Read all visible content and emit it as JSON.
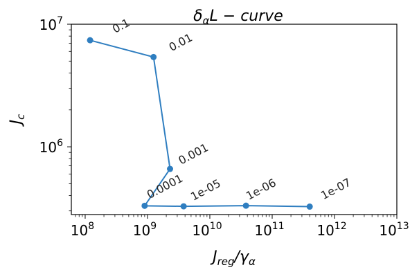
{
  "chart_data": {
    "type": "line",
    "title": "δαL − curve",
    "title_parts": {
      "main": "δ",
      "sub": "α",
      "rest": "L − curve"
    },
    "xlabel": "Jreg/γα",
    "xlabel_parts": {
      "j": "J",
      "jsub": "reg",
      "slash": "/γ",
      "gsub": "α"
    },
    "ylabel": "Jc",
    "ylabel_parts": {
      "j": "J",
      "jsub": "c"
    },
    "x_scale": "log",
    "y_scale": "log",
    "xlim": [
      60000000,
      10000000000000
    ],
    "ylim": [
      280000,
      10000000
    ],
    "x_ticks": [
      {
        "value": 100000000,
        "base": "10",
        "exp": "8"
      },
      {
        "value": 1000000000,
        "base": "10",
        "exp": "9"
      },
      {
        "value": 10000000000,
        "base": "10",
        "exp": "10"
      },
      {
        "value": 100000000000,
        "base": "10",
        "exp": "11"
      },
      {
        "value": 1000000000000,
        "base": "10",
        "exp": "12"
      },
      {
        "value": 10000000000000,
        "base": "10",
        "exp": "13"
      }
    ],
    "y_ticks": [
      {
        "value": 1000000,
        "base": "10",
        "exp": "6"
      },
      {
        "value": 10000000,
        "base": "10",
        "exp": "7"
      }
    ],
    "color": "#2f7ec0",
    "grid": false,
    "points": [
      {
        "label": "0.1",
        "x": 120000000,
        "y": 7400000
      },
      {
        "label": "0.01",
        "x": 1250000000,
        "y": 5400000
      },
      {
        "label": "0.001",
        "x": 2300000000,
        "y": 660000
      },
      {
        "label": "0.0001",
        "x": 900000000,
        "y": 330000
      },
      {
        "label": "1e-05",
        "x": 3800000000,
        "y": 327000
      },
      {
        "label": "1e-06",
        "x": 38000000000,
        "y": 331000
      },
      {
        "label": "1e-07",
        "x": 400000000000,
        "y": 325000
      }
    ]
  }
}
